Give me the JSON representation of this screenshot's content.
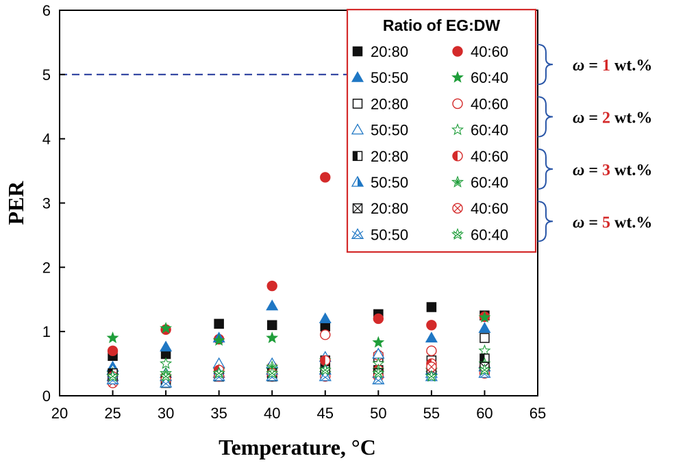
{
  "chart_data": {
    "type": "scatter",
    "xlabel": "Temperature, °C",
    "ylabel": "PER",
    "xlim": [
      20,
      65
    ],
    "ylim": [
      0,
      6
    ],
    "xticks": [
      20,
      25,
      30,
      35,
      40,
      45,
      50,
      55,
      60,
      65
    ],
    "yticks": [
      0,
      1,
      2,
      3,
      4,
      5,
      6
    ],
    "x": [
      25,
      30,
      35,
      40,
      45,
      50,
      55,
      60
    ],
    "reference_line": {
      "y": 5,
      "style": "dashed",
      "color": "#2b3f9e"
    },
    "legend": {
      "title": "Ratio of EG:DW",
      "placement": "top-right",
      "groups": [
        {
          "omega_symbol": "ω",
          "equals": " = ",
          "value": "1",
          "unit": " wt.%"
        },
        {
          "omega_symbol": "ω",
          "equals": " = ",
          "value": "2",
          "unit": " wt.%"
        },
        {
          "omega_symbol": "ω",
          "equals": " = ",
          "value": "3",
          "unit": " wt.%"
        },
        {
          "omega_symbol": "ω",
          "equals": " = ",
          "value": "5",
          "unit": " wt.%"
        }
      ]
    },
    "colors": {
      "black": "#111111",
      "red": "#d42a2a",
      "blue": "#1f77c4",
      "green": "#1f9e3a",
      "frame_red": "#d42a2a",
      "bracket": "#2b57a8",
      "dash": "#2b3f9e"
    },
    "series": [
      {
        "name": "20:80",
        "omega": 1,
        "marker": "square",
        "fill": "full",
        "color": "black",
        "values": [
          0.62,
          0.65,
          1.12,
          1.1,
          1.08,
          1.27,
          1.38,
          1.25
        ]
      },
      {
        "name": "40:60",
        "omega": 1,
        "marker": "circle",
        "fill": "full",
        "color": "red",
        "values": [
          0.7,
          1.03,
          0.88,
          1.71,
          3.4,
          1.2,
          1.1,
          1.23
        ]
      },
      {
        "name": "50:50",
        "omega": 1,
        "marker": "triangle",
        "fill": "full",
        "color": "blue",
        "values": [
          0.45,
          0.76,
          0.9,
          1.4,
          1.2,
          0.65,
          0.9,
          1.05
        ]
      },
      {
        "name": "60:40",
        "omega": 1,
        "marker": "star",
        "fill": "full",
        "color": "green",
        "values": [
          0.9,
          1.05,
          0.86,
          0.9,
          0.55,
          0.83,
          0.35,
          1.22
        ]
      },
      {
        "name": "20:80",
        "omega": 2,
        "marker": "square",
        "fill": "open",
        "color": "black",
        "values": [
          0.3,
          0.25,
          0.3,
          0.35,
          0.55,
          0.6,
          0.55,
          0.9
        ]
      },
      {
        "name": "40:60",
        "omega": 2,
        "marker": "circle",
        "fill": "open",
        "color": "red",
        "values": [
          0.25,
          0.3,
          0.3,
          0.45,
          0.95,
          0.63,
          0.7,
          0.4
        ]
      },
      {
        "name": "50:50",
        "omega": 2,
        "marker": "triangle",
        "fill": "open",
        "color": "blue",
        "values": [
          0.4,
          0.35,
          0.5,
          0.5,
          0.6,
          0.65,
          0.35,
          0.5
        ]
      },
      {
        "name": "60:40",
        "omega": 2,
        "marker": "star",
        "fill": "open",
        "color": "green",
        "values": [
          0.35,
          0.5,
          0.4,
          0.4,
          0.4,
          0.5,
          0.4,
          0.7
        ]
      },
      {
        "name": "20:80",
        "omega": 3,
        "marker": "square",
        "fill": "half",
        "color": "black",
        "values": [
          0.35,
          0.2,
          0.3,
          0.35,
          0.4,
          0.4,
          0.45,
          0.58
        ]
      },
      {
        "name": "40:60",
        "omega": 3,
        "marker": "circle",
        "fill": "half",
        "color": "red",
        "values": [
          0.3,
          0.3,
          0.4,
          0.3,
          0.55,
          0.4,
          0.5,
          0.45
        ]
      },
      {
        "name": "50:50",
        "omega": 3,
        "marker": "triangle",
        "fill": "half",
        "color": "blue",
        "values": [
          0.3,
          0.3,
          0.35,
          0.4,
          0.4,
          0.35,
          0.4,
          0.45
        ]
      },
      {
        "name": "60:40",
        "omega": 3,
        "marker": "star",
        "fill": "half",
        "color": "green",
        "values": [
          0.3,
          0.35,
          0.35,
          0.45,
          0.35,
          0.4,
          0.4,
          0.5
        ]
      },
      {
        "name": "20:80",
        "omega": 5,
        "marker": "square",
        "fill": "cross",
        "color": "black",
        "values": [
          0.25,
          0.25,
          0.3,
          0.3,
          0.35,
          0.35,
          0.4,
          0.45
        ]
      },
      {
        "name": "40:60",
        "omega": 5,
        "marker": "circle",
        "fill": "cross",
        "color": "red",
        "values": [
          0.2,
          0.25,
          0.3,
          0.35,
          0.3,
          0.3,
          0.45,
          0.35
        ]
      },
      {
        "name": "50:50",
        "omega": 5,
        "marker": "triangle",
        "fill": "cross",
        "color": "blue",
        "values": [
          0.25,
          0.2,
          0.3,
          0.3,
          0.3,
          0.25,
          0.3,
          0.35
        ]
      },
      {
        "name": "60:40",
        "omega": 5,
        "marker": "star",
        "fill": "cross",
        "color": "green",
        "values": [
          0.3,
          0.3,
          0.35,
          0.35,
          0.4,
          0.35,
          0.3,
          0.4
        ]
      }
    ]
  }
}
